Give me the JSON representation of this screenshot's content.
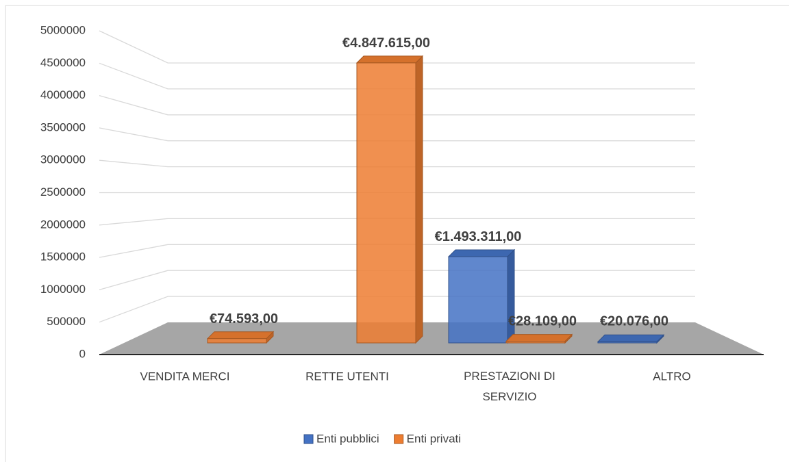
{
  "chart_data": {
    "type": "bar3d",
    "categories": [
      "VENDITA MERCI",
      "RETTE UTENTI",
      "PRESTAZIONI DI SERVIZIO",
      "ALTRO"
    ],
    "series": [
      {
        "name": "Enti pubblici",
        "color": "#4472c4",
        "values": [
          null,
          null,
          1493311,
          20076
        ],
        "value_labels": [
          null,
          null,
          "€1.493.311,00",
          "€20.076,00"
        ]
      },
      {
        "name": "Enti privati",
        "color": "#ed7d31",
        "values": [
          74593,
          4847615,
          28109,
          null
        ],
        "value_labels": [
          "€74.593,00",
          "€4.847.615,00",
          "€28.109,00",
          null
        ]
      }
    ],
    "ylim": [
      0,
      5000000
    ],
    "yticks": [
      0,
      500000,
      1000000,
      1500000,
      2000000,
      2500000,
      3000000,
      3500000,
      4000000,
      4500000,
      5000000
    ],
    "grid": true,
    "legend": "bottom"
  }
}
